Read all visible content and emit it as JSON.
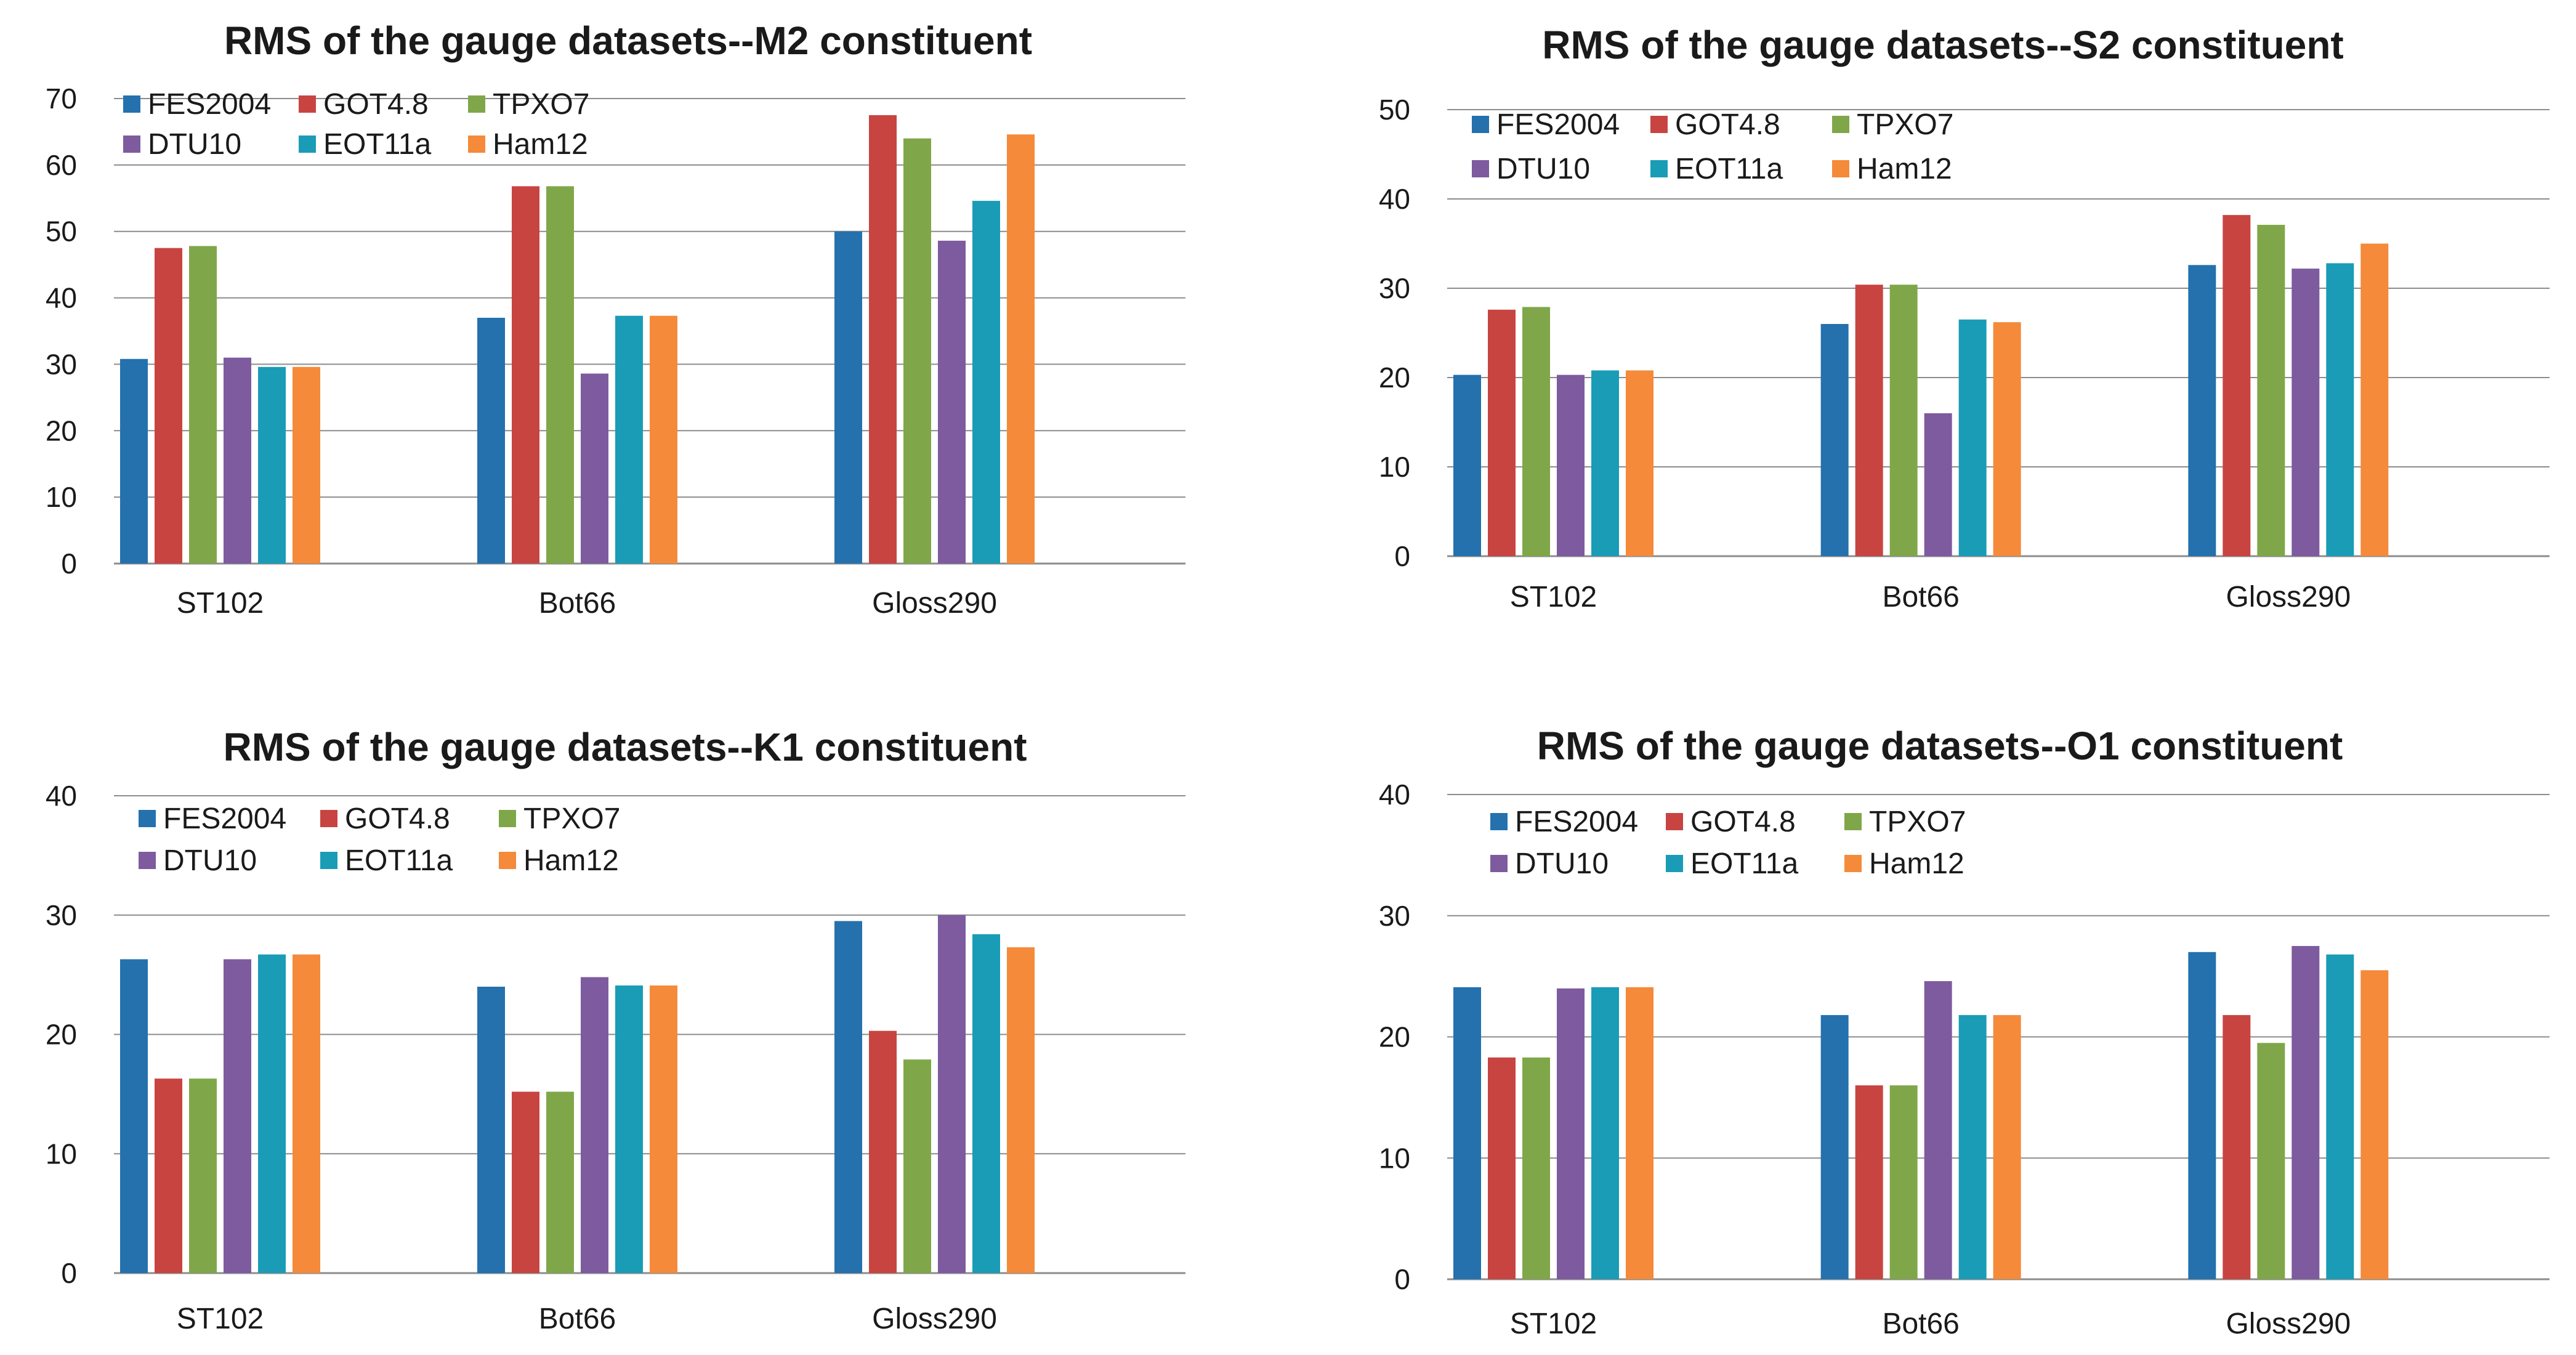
{
  "chart_data": [
    {
      "type": "bar",
      "title": "RMS of the gauge datasets--M2 constituent",
      "categories": [
        "ST102",
        "Bot66",
        "Gloss290"
      ],
      "ylim": [
        0,
        70
      ],
      "yticks": [
        0,
        10,
        20,
        30,
        40,
        50,
        60,
        70
      ],
      "grid": true,
      "legend_position": "top-left",
      "series": [
        {
          "name": "FES2004",
          "color": "#2471AE",
          "values": [
            30.8,
            37.0,
            50.0
          ]
        },
        {
          "name": "GOT4.8",
          "color": "#C84441",
          "values": [
            47.5,
            56.8,
            67.5
          ]
        },
        {
          "name": "TPXO7",
          "color": "#7FA749",
          "values": [
            47.8,
            56.8,
            64.0
          ]
        },
        {
          "name": "DTU10",
          "color": "#7D5B9E",
          "values": [
            31.0,
            28.6,
            48.6
          ]
        },
        {
          "name": "EOT11a",
          "color": "#1A9CB6",
          "values": [
            29.6,
            37.3,
            54.6
          ]
        },
        {
          "name": "Ham12",
          "color": "#F48A3A",
          "values": [
            29.6,
            37.3,
            64.6
          ]
        }
      ]
    },
    {
      "type": "bar",
      "title": "RMS of the gauge datasets--S2 constituent",
      "categories": [
        "ST102",
        "Bot66",
        "Gloss290"
      ],
      "ylim": [
        0,
        50
      ],
      "yticks": [
        0,
        10,
        20,
        30,
        40,
        50
      ],
      "grid": true,
      "legend_position": "top-left",
      "series": [
        {
          "name": "FES2004",
          "color": "#2471AE",
          "values": [
            20.3,
            26.0,
            32.6
          ]
        },
        {
          "name": "GOT4.8",
          "color": "#C84441",
          "values": [
            27.6,
            30.4,
            38.2
          ]
        },
        {
          "name": "TPXO7",
          "color": "#7FA749",
          "values": [
            27.9,
            30.4,
            37.1
          ]
        },
        {
          "name": "DTU10",
          "color": "#7D5B9E",
          "values": [
            20.3,
            16.0,
            32.2
          ]
        },
        {
          "name": "EOT11a",
          "color": "#1A9CB6",
          "values": [
            20.8,
            26.5,
            32.8
          ]
        },
        {
          "name": "Ham12",
          "color": "#F48A3A",
          "values": [
            20.8,
            26.2,
            35.0
          ]
        }
      ]
    },
    {
      "type": "bar",
      "title": "RMS of the gauge datasets--K1 constituent",
      "categories": [
        "ST102",
        "Bot66",
        "Gloss290"
      ],
      "ylim": [
        0,
        40
      ],
      "yticks": [
        0,
        10,
        20,
        30,
        40
      ],
      "grid": true,
      "legend_position": "top-left",
      "series": [
        {
          "name": "FES2004",
          "color": "#2471AE",
          "values": [
            26.3,
            24.0,
            29.5
          ]
        },
        {
          "name": "GOT4.8",
          "color": "#C84441",
          "values": [
            16.3,
            15.2,
            20.3
          ]
        },
        {
          "name": "TPXO7",
          "color": "#7FA749",
          "values": [
            16.3,
            15.2,
            17.9
          ]
        },
        {
          "name": "DTU10",
          "color": "#7D5B9E",
          "values": [
            26.3,
            24.8,
            30.0
          ]
        },
        {
          "name": "EOT11a",
          "color": "#1A9CB6",
          "values": [
            26.7,
            24.1,
            28.4
          ]
        },
        {
          "name": "Ham12",
          "color": "#F48A3A",
          "values": [
            26.7,
            24.1,
            27.3
          ]
        }
      ]
    },
    {
      "type": "bar",
      "title": "RMS of the gauge datasets--O1 constituent",
      "categories": [
        "ST102",
        "Bot66",
        "Gloss290"
      ],
      "ylim": [
        0,
        40
      ],
      "yticks": [
        0,
        10,
        20,
        30,
        40
      ],
      "grid": true,
      "legend_position": "top-left",
      "series": [
        {
          "name": "FES2004",
          "color": "#2471AE",
          "values": [
            24.1,
            21.8,
            27.0
          ]
        },
        {
          "name": "GOT4.8",
          "color": "#C84441",
          "values": [
            18.3,
            16.0,
            21.8
          ]
        },
        {
          "name": "TPXO7",
          "color": "#7FA749",
          "values": [
            18.3,
            16.0,
            19.5
          ]
        },
        {
          "name": "DTU10",
          "color": "#7D5B9E",
          "values": [
            24.0,
            24.6,
            27.5
          ]
        },
        {
          "name": "EOT11a",
          "color": "#1A9CB6",
          "values": [
            24.1,
            21.8,
            26.8
          ]
        },
        {
          "name": "Ham12",
          "color": "#F48A3A",
          "values": [
            24.1,
            21.8,
            25.5
          ]
        }
      ]
    }
  ]
}
